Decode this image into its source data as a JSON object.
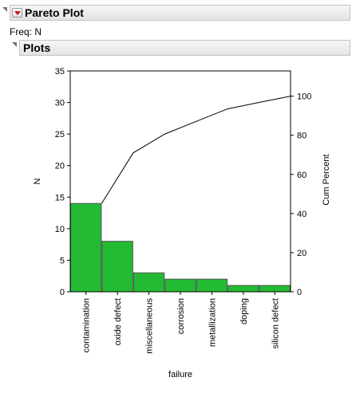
{
  "report": {
    "title": "Pareto Plot",
    "freq_label": "Freq: N",
    "plots_title": "Plots"
  },
  "colors": {
    "bar_fill": "#22bb33",
    "bar_stroke": "#555555",
    "cum_line": "#000000"
  },
  "chart_data": {
    "type": "bar",
    "categories": [
      "contamination",
      "oxide defect",
      "miscellaneous",
      "corrosion",
      "metallization",
      "doping",
      "silicon defect"
    ],
    "values": [
      14,
      8,
      3,
      2,
      2,
      1,
      1
    ],
    "cumulative_percent": [
      45.2,
      71.0,
      80.6,
      87.1,
      93.5,
      96.8,
      100
    ],
    "xlabel": "failure",
    "ylabel": "N",
    "y2label": "Cum Percent",
    "ylim": [
      0,
      35
    ],
    "y2lim": [
      0,
      112.9
    ],
    "yticks": [
      0,
      5,
      10,
      15,
      20,
      25,
      30,
      35
    ],
    "y2ticks": [
      0,
      20,
      40,
      60,
      80,
      100
    ],
    "grid": false,
    "legend": "none"
  }
}
